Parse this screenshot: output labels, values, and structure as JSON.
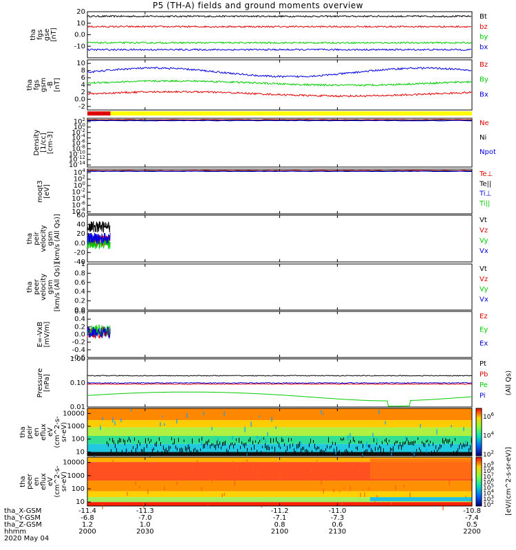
{
  "title": "P5 (TH-A) fields and ground moments overview",
  "chart_data": [
    {
      "id": "fgs-gse",
      "type": "line",
      "ylabel": [
        "tha",
        "fgs",
        "gse",
        "[nT]"
      ],
      "ylim": [
        -20,
        20
      ],
      "ticks": [
        20,
        10,
        0,
        -10
      ],
      "series": [
        {
          "name": "Bt",
          "color": "#000000",
          "level": 16
        },
        {
          "name": "bz",
          "color": "#e00000",
          "level": 7
        },
        {
          "name": "by",
          "color": "#00cc00",
          "level": -7
        },
        {
          "name": "bx",
          "color": "#0000dd",
          "level": -13
        }
      ]
    },
    {
      "id": "fgs-gsm",
      "type": "line",
      "ylabel": [
        "tha",
        "fgs",
        "gsm",
        "-B",
        "[nT]"
      ],
      "ylim": [
        -3,
        11
      ],
      "ticks": [
        10,
        8,
        6,
        4,
        2,
        0,
        -2
      ],
      "series": [
        {
          "name": "Bz",
          "color": "#e00000",
          "level": 1.5
        },
        {
          "name": "By",
          "color": "#00cc00",
          "level": 4.5
        },
        {
          "name": "Bx",
          "color": "#0000dd",
          "level": 7.5
        }
      ]
    },
    {
      "id": "mode-bar",
      "type": "bar",
      "segments": [
        {
          "color": "#e00000",
          "from": 2000,
          "to": 2012
        },
        {
          "color": "#ffff00",
          "from": 2012,
          "to": 2200
        }
      ]
    },
    {
      "id": "density",
      "type": "line",
      "ylabel": [
        "Density",
        "[1/cc]",
        "[cm-3]"
      ],
      "scale": "log",
      "tick_labels": [
        "10^2",
        "10^0",
        "10^-2",
        "10^-4",
        "10^-6",
        "10^-8",
        "10^-10",
        "10^-12",
        "10^-14"
      ],
      "series": [
        {
          "name": "Ne",
          "color": "#e00000"
        },
        {
          "name": "Ni",
          "color": "#000000"
        },
        {
          "name": "Npot",
          "color": "#0000dd"
        }
      ]
    },
    {
      "id": "temperature",
      "type": "line",
      "ylabel": [
        "moqt3",
        "[eV]"
      ],
      "scale": "log",
      "tick_labels": [
        "10^4",
        "10^2",
        "10^0",
        "10^-2",
        "10^-4",
        "10^-6",
        "10^-8"
      ],
      "series": [
        {
          "name": "Te⊥",
          "color": "#e00000"
        },
        {
          "name": "Te||",
          "color": "#000000"
        },
        {
          "name": "Ti⊥",
          "color": "#0000dd"
        },
        {
          "name": "Ti||",
          "color": "#00cc00"
        }
      ]
    },
    {
      "id": "peir-velocity",
      "type": "line",
      "ylabel": [
        "tha",
        "peir",
        "velocity",
        "gsm",
        "[km/s (All Qs)]"
      ],
      "ylim": [
        -40,
        60
      ],
      "ticks": [
        60,
        40,
        20,
        0,
        -20,
        -40
      ],
      "data_end": 2012,
      "series": [
        {
          "name": "Vt",
          "color": "#000000",
          "level": 35
        },
        {
          "name": "Vz",
          "color": "#e00000",
          "level": 5
        },
        {
          "name": "Vy",
          "color": "#00cc00",
          "level": 0
        },
        {
          "name": "Vx",
          "color": "#0000dd",
          "level": 10
        }
      ]
    },
    {
      "id": "peer-velocity",
      "type": "line",
      "ylabel": [
        "tha",
        "peer",
        "velocity",
        "gsm",
        "[km/s (All Qs)]"
      ],
      "ylim": [
        0,
        1
      ],
      "ticks": [
        1.0,
        0.8,
        0.6,
        0.4,
        0.2,
        0.0
      ],
      "series": [
        {
          "name": "Vt",
          "color": "#000000"
        },
        {
          "name": "Vz",
          "color": "#e00000"
        },
        {
          "name": "Vy",
          "color": "#00cc00"
        },
        {
          "name": "Vx",
          "color": "#0000dd"
        }
      ]
    },
    {
      "id": "e-field",
      "type": "line",
      "ylabel": [
        "E=-VxB",
        "[mV/m]"
      ],
      "ylim": [
        -0.6,
        0.6
      ],
      "ticks": [
        0.6,
        0.4,
        0.2,
        0.0,
        -0.2,
        -0.4,
        -0.6
      ],
      "data_end": 2012,
      "series": [
        {
          "name": "Ez",
          "color": "#e00000",
          "level": 0.05
        },
        {
          "name": "Ey",
          "color": "#00cc00",
          "level": 0.1
        },
        {
          "name": "Ex",
          "color": "#0000dd",
          "level": 0.05
        }
      ]
    },
    {
      "id": "pressure",
      "type": "line",
      "ylabel": [
        "Pressure",
        "[nPa]"
      ],
      "scale": "log",
      "ylim": [
        0.01,
        1.0
      ],
      "tick_labels": [
        "1.00",
        "0.10",
        "0.01"
      ],
      "series": [
        {
          "name": "Pt",
          "color": "#000000",
          "level": 0.2
        },
        {
          "name": "Pb",
          "color": "#e00000",
          "level": 0.09
        },
        {
          "name": "Pe",
          "color": "#00cc00",
          "level": 0.03
        },
        {
          "name": "Pi",
          "color": "#0000dd",
          "level": 0.1
        }
      ],
      "right_label": "(All Qs)"
    },
    {
      "id": "peir-eflux",
      "type": "heatmap",
      "ylabel": [
        "tha",
        "peir",
        "en",
        "eflux",
        "eV",
        "(cm^2-s-",
        "sr-eV)"
      ],
      "scale": "log",
      "ylim": [
        5,
        25000
      ],
      "tick_labels": [
        "10000",
        "1000",
        "100",
        "10"
      ]
    },
    {
      "id": "peer-eflux",
      "type": "heatmap",
      "ylabel": [
        "tha",
        "peer",
        "en",
        "eflux",
        "eV",
        "(cm^2-s-",
        "sr-eV)"
      ],
      "scale": "log",
      "ylim": [
        5,
        25000
      ],
      "tick_labels": [
        "10000",
        "1000",
        "100",
        "10"
      ]
    }
  ],
  "colorbar": {
    "label": "[eV/(cm^2-s-sr-eV)]",
    "upper_ticks": [
      "10^6",
      "10^4",
      "10^2"
    ],
    "lower_ticks": [
      "10^9",
      "10^8",
      "10^7",
      "10^6",
      "10^5",
      "10^4",
      "10^3",
      "10^2"
    ]
  },
  "x_axis": {
    "rows": [
      {
        "name": "tha_X-GSM",
        "values": [
          "-11.4",
          "-11.3",
          "-11.2",
          "-11.0",
          "-10.8"
        ]
      },
      {
        "name": "tha_Y-GSM",
        "values": [
          "-6.8",
          "-7.0",
          "-7.1",
          "-7.3",
          "-7.4"
        ]
      },
      {
        "name": "tha_Z-GSM",
        "values": [
          "1.2",
          "1.0",
          "0.8",
          "0.6",
          "0.5"
        ]
      },
      {
        "name": "hhmm",
        "values": [
          "2000",
          "2030",
          "2100",
          "2130",
          "2200"
        ]
      }
    ],
    "date": "2020 May 04"
  }
}
